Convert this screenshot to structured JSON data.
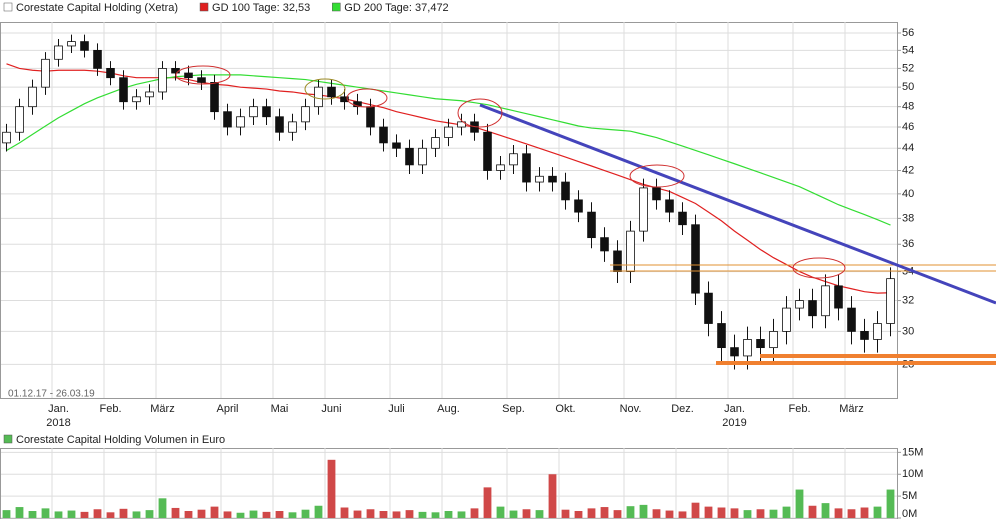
{
  "chart_data": [
    {
      "type": "candlestick",
      "name": "Corestate Capital Holding (Xetra)",
      "date_range": "01.12.17 - 26.03.19",
      "categories": [
        null,
        null,
        null,
        null,
        "Jan.",
        null,
        null,
        null,
        "Feb.",
        null,
        null,
        null,
        "März",
        null,
        null,
        null,
        null,
        "April",
        null,
        null,
        null,
        "Mai",
        null,
        null,
        null,
        "Juni",
        null,
        null,
        null,
        null,
        "Juli",
        null,
        null,
        null,
        "Aug.",
        null,
        null,
        null,
        null,
        "Sep.",
        null,
        null,
        null,
        "Okt.",
        null,
        null,
        null,
        null,
        "Nov.",
        null,
        null,
        null,
        "Dez.",
        null,
        null,
        null,
        "Jan.",
        null,
        null,
        null,
        null,
        "Feb.",
        null,
        null,
        null,
        "März",
        null,
        null,
        null
      ],
      "year_labels": [
        null,
        null,
        null,
        null,
        "2018",
        null,
        null,
        null,
        null,
        null,
        null,
        null,
        null,
        null,
        null,
        null,
        null,
        null,
        null,
        null,
        null,
        null,
        null,
        null,
        null,
        null,
        null,
        null,
        null,
        null,
        null,
        null,
        null,
        null,
        null,
        null,
        null,
        null,
        null,
        null,
        null,
        null,
        null,
        null,
        null,
        null,
        null,
        null,
        null,
        null,
        null,
        null,
        null,
        null,
        null,
        null,
        "2019",
        null,
        null,
        null,
        null,
        null,
        null,
        null,
        null,
        null,
        null,
        null,
        null
      ],
      "open": [
        44.5,
        45.5,
        48,
        50,
        53,
        54.5,
        55,
        54,
        52,
        51,
        48.5,
        49,
        49.5,
        52,
        51.5,
        51,
        50.5,
        47.5,
        46,
        47,
        48,
        47,
        45.5,
        46.5,
        48,
        50,
        49,
        48.5,
        48,
        46,
        44.5,
        44,
        42.5,
        44,
        45,
        46,
        46.5,
        45.5,
        42,
        42.5,
        43.5,
        41,
        41.5,
        41,
        39.5,
        38.5,
        36.5,
        35.5,
        34,
        37,
        40.5,
        39.5,
        38.5,
        37.5,
        32.5,
        30.5,
        29,
        28.5,
        29.5,
        29,
        30,
        31.5,
        32,
        31,
        33,
        31.5,
        30,
        29.5,
        30.5
      ],
      "high": [
        46.3,
        48.8,
        50.8,
        53.8,
        55.3,
        55.8,
        55.8,
        54.8,
        52.8,
        51.8,
        49.8,
        50.3,
        52.8,
        52.8,
        52.3,
        51.8,
        51.3,
        48.3,
        47.8,
        48.8,
        48.8,
        47.8,
        47.3,
        48.8,
        50.8,
        50.8,
        49.8,
        49.3,
        48.8,
        46.8,
        45.3,
        44.8,
        44.8,
        45.8,
        46.8,
        47.3,
        47.3,
        46.3,
        43.3,
        44.3,
        44.3,
        42.3,
        42.3,
        41.8,
        40.3,
        39.3,
        37.3,
        36.3,
        37.8,
        41.3,
        41.3,
        40.3,
        39.3,
        38.3,
        33.3,
        31.3,
        29.8,
        30.3,
        30.3,
        30.8,
        32.3,
        32.8,
        32.8,
        33.8,
        33.8,
        32.3,
        30.8,
        31.3,
        34.3
      ],
      "low": [
        43.7,
        44.7,
        47.2,
        49.2,
        52.2,
        53.7,
        53.2,
        51.2,
        50.2,
        47.7,
        47.7,
        48.2,
        48.7,
        50.7,
        50.2,
        49.7,
        46.7,
        45.2,
        45.2,
        46.2,
        46.2,
        44.7,
        44.7,
        45.7,
        47.2,
        48.2,
        47.7,
        47.2,
        45.2,
        43.7,
        43.2,
        41.7,
        41.7,
        43.2,
        44.2,
        45.2,
        44.7,
        41.2,
        41.2,
        41.7,
        40.2,
        40.2,
        40.2,
        38.7,
        37.7,
        35.7,
        34.7,
        33.2,
        33.2,
        36.2,
        38.7,
        37.7,
        36.7,
        31.7,
        29.7,
        28.2,
        27.7,
        27.7,
        28.2,
        28.2,
        29.2,
        30.7,
        30.2,
        30.2,
        30.7,
        29.2,
        28.7,
        28.7,
        29.7
      ],
      "close": [
        45.5,
        48,
        50,
        53,
        54.5,
        55,
        54,
        52,
        51,
        48.5,
        49,
        49.5,
        52,
        51.5,
        51,
        50.5,
        47.5,
        46,
        47,
        48,
        47,
        45.5,
        46.5,
        48,
        50,
        49,
        48.5,
        48,
        46,
        44.5,
        44,
        42.5,
        44,
        45,
        46,
        46.5,
        45.5,
        42,
        42.5,
        43.5,
        41,
        41.5,
        41,
        39.5,
        38.5,
        36.5,
        35.5,
        34,
        37,
        40.5,
        39.5,
        38.5,
        37.5,
        32.5,
        30.5,
        29,
        28.5,
        29.5,
        29,
        30,
        31.5,
        32,
        31,
        33,
        31.5,
        30,
        29.5,
        30.5,
        33.5
      ],
      "series": [
        {
          "name": "GD 100 Tage: 32,53",
          "color": "#e02020",
          "values": [
            52.5,
            52,
            51.8,
            51.7,
            51.8,
            51.8,
            51.8,
            51.7,
            51.5,
            51.2,
            51,
            51,
            51,
            51,
            50.8,
            50.5,
            50.3,
            50.2,
            50,
            49.9,
            49.8,
            49.6,
            49.5,
            49.3,
            49.2,
            49,
            48.8,
            48.5,
            48.2,
            47.9,
            47.5,
            47.2,
            46.9,
            46.6,
            46.4,
            46.2,
            46,
            45.6,
            45.2,
            44.8,
            44.4,
            44,
            43.6,
            43.2,
            42.8,
            42.4,
            42,
            41.6,
            41.2,
            40.8,
            40.5,
            40.2,
            39.7,
            39.2,
            38.5,
            37.8,
            37,
            36.3,
            35.6,
            35,
            34.5,
            34,
            33.6,
            33.3,
            33,
            32.8,
            32.6,
            32.5,
            32.53
          ]
        },
        {
          "name": "GD 200 Tage: 37,472",
          "color": "#33dd33",
          "values": [
            43.8,
            44.5,
            45.3,
            46.1,
            46.9,
            47.6,
            48.3,
            48.9,
            49.4,
            49.9,
            50.3,
            50.6,
            50.9,
            51.1,
            51.2,
            51.3,
            51.3,
            51.3,
            51.3,
            51.2,
            51.1,
            51,
            50.9,
            50.8,
            50.6,
            50.4,
            50.2,
            50,
            49.8,
            49.6,
            49.4,
            49.2,
            49,
            48.8,
            48.7,
            48.6,
            48.4,
            48.2,
            47.9,
            47.6,
            47.3,
            47,
            46.7,
            46.4,
            46.1,
            45.9,
            45.8,
            45.7,
            45.6,
            45.3,
            45,
            44.6,
            44.2,
            43.8,
            43.4,
            43,
            42.6,
            42.2,
            41.8,
            41.4,
            41,
            40.6,
            40.1,
            39.6,
            39.1,
            38.7,
            38.3,
            37.9,
            37.47
          ]
        }
      ],
      "ylim": [
        26.1,
        57.3
      ],
      "yticks": [
        28,
        30,
        32,
        34,
        36,
        38,
        40,
        42,
        44,
        46,
        48,
        50,
        52,
        54,
        56
      ],
      "log_scale": true,
      "grid": true
    },
    {
      "type": "bar",
      "title": "Corestate Capital Holding Volumen in Euro",
      "values": [
        1800000,
        2500000,
        1600000,
        2200000,
        1500000,
        1700000,
        1400000,
        2000000,
        1300000,
        2100000,
        1500000,
        1800000,
        4500000,
        2300000,
        1600000,
        1900000,
        2600000,
        1500000,
        1200000,
        1700000,
        1400000,
        1600000,
        1300000,
        1900000,
        2800000,
        13300000,
        2400000,
        1700000,
        2000000,
        1600000,
        1500000,
        1800000,
        1400000,
        1300000,
        1600000,
        1500000,
        2200000,
        7000000,
        2600000,
        1700000,
        2000000,
        1800000,
        10000000,
        1900000,
        1600000,
        2200000,
        2500000,
        1800000,
        2700000,
        3000000,
        2000000,
        1700000,
        1500000,
        3500000,
        2600000,
        2400000,
        2200000,
        1800000,
        2000000,
        1900000,
        2600000,
        6500000,
        2800000,
        3400000,
        2200000,
        2000000,
        2400000,
        2600000,
        6500000
      ],
      "up_color": "#55bb55",
      "down_color": "#d04848",
      "ylim": [
        0,
        16000000
      ],
      "yticks": [
        {
          "value": 0,
          "label": "0M"
        },
        {
          "value": 5000000,
          "label": "5M"
        },
        {
          "value": 10000000,
          "label": "10M"
        },
        {
          "value": 15000000,
          "label": "15M"
        }
      ],
      "grid": true
    }
  ]
}
